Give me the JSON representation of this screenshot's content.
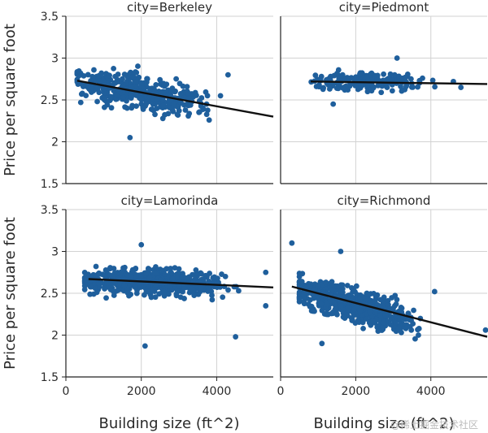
{
  "chart_data": {
    "type": "scatter",
    "layout": "facet-grid 2x2",
    "xlabel": "Building size (ft^2)",
    "ylabel": "Price per square foot",
    "xlim": [
      0,
      5500
    ],
    "ylim": [
      1.5,
      3.5
    ],
    "x_ticks": [
      0,
      2000,
      4000
    ],
    "y_ticks": [
      1.5,
      2,
      2.5,
      3,
      3.5
    ],
    "x_tick_labels": [
      "0",
      "2000",
      "4000"
    ],
    "y_tick_labels": [
      "1.5",
      "2",
      "2.5",
      "3",
      "3.5"
    ],
    "point_color": "#1f5f9c",
    "fit_color": "#111111",
    "facets": [
      {
        "title": "city=Berkeley",
        "fit_line": {
          "x": [
            300,
            5500
          ],
          "y": [
            2.73,
            2.3
          ]
        },
        "cloud": {
          "x_range": [
            300,
            4200
          ],
          "x_peak": 1400,
          "y_center_at_x0": 2.74,
          "y_slope_per_1000": -0.08,
          "y_spread": 0.14,
          "n": 420,
          "seed": 11
        },
        "outliers": [
          [
            1700,
            2.05
          ],
          [
            4300,
            2.8
          ],
          [
            4100,
            2.55
          ],
          [
            3800,
            2.26
          ]
        ]
      },
      {
        "title": "city=Piedmont",
        "fit_line": {
          "x": [
            800,
            5500
          ],
          "y": [
            2.72,
            2.69
          ]
        },
        "cloud": {
          "x_range": [
            800,
            4300
          ],
          "x_peak": 2200,
          "y_center_at_x0": 2.73,
          "y_slope_per_1000": -0.005,
          "y_spread": 0.08,
          "n": 190,
          "seed": 23
        },
        "outliers": [
          [
            3100,
            3.0
          ],
          [
            1400,
            2.45
          ],
          [
            4800,
            2.65
          ],
          [
            4600,
            2.72
          ]
        ]
      },
      {
        "title": "city=Lamorinda",
        "fit_line": {
          "x": [
            600,
            5500
          ],
          "y": [
            2.67,
            2.57
          ]
        },
        "cloud": {
          "x_range": [
            500,
            5000
          ],
          "x_peak": 1900,
          "y_center_at_x0": 2.68,
          "y_slope_per_1000": -0.02,
          "y_spread": 0.11,
          "n": 560,
          "seed": 37
        },
        "outliers": [
          [
            2100,
            1.87
          ],
          [
            4500,
            1.98
          ],
          [
            5300,
            2.35
          ],
          [
            5300,
            2.75
          ],
          [
            2000,
            3.08
          ]
        ]
      },
      {
        "title": "city=Richmond",
        "fit_line": {
          "x": [
            300,
            5500
          ],
          "y": [
            2.58,
            1.98
          ]
        },
        "cloud": {
          "x_range": [
            500,
            4200
          ],
          "x_peak": 1300,
          "y_center_at_x0": 2.62,
          "y_slope_per_1000": -0.13,
          "y_spread": 0.14,
          "n": 560,
          "seed": 53
        },
        "outliers": [
          [
            300,
            3.1
          ],
          [
            4100,
            2.52
          ],
          [
            5500,
            2.06
          ],
          [
            1100,
            1.9
          ],
          [
            1600,
            3.0
          ]
        ]
      }
    ]
  },
  "watermark": "@稀土掘金技术社区"
}
